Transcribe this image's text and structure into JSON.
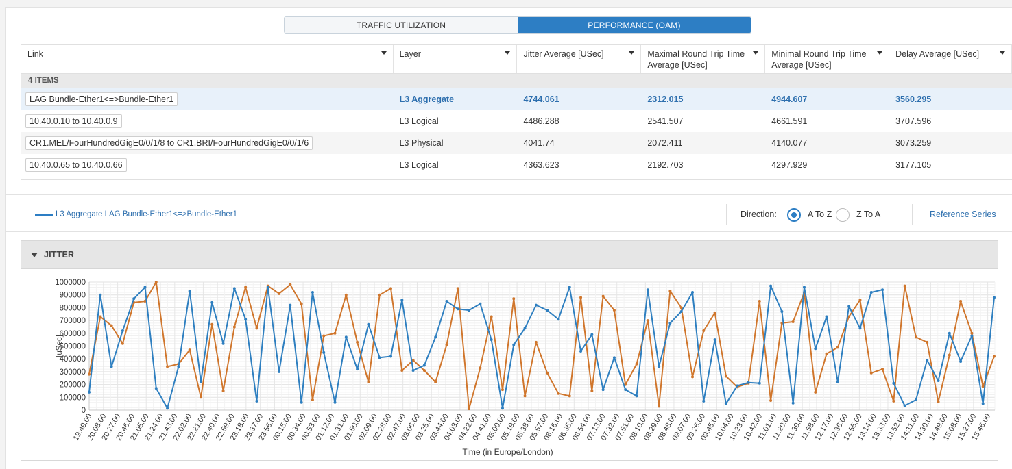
{
  "tabs": [
    {
      "label": "TRAFFIC UTILIZATION",
      "active": false
    },
    {
      "label": "PERFORMANCE (OAM)",
      "active": true
    }
  ],
  "table": {
    "columns": [
      "Link",
      "Layer",
      "Jitter Average [USec]",
      "Maximal Round Trip Time Average [USec]",
      "Minimal Round Trip Time Average [USec]",
      "Delay Average [USec]"
    ],
    "count_label": "4 ITEMS",
    "rows": [
      {
        "link": "LAG Bundle-Ether1<=>Bundle-Ether1",
        "layer": "L3 Aggregate",
        "jitter": "4744.061",
        "max_rtt": "2312.015",
        "min_rtt": "4944.607",
        "delay": "3560.295",
        "selected": true
      },
      {
        "link": "10.40.0.10 to 10.40.0.9",
        "layer": "L3 Logical",
        "jitter": "4486.288",
        "max_rtt": "2541.507",
        "min_rtt": "4661.591",
        "delay": "3707.596",
        "selected": false
      },
      {
        "link": "CR1.MEL/FourHundredGigE0/0/1/8 to CR1.BRI/FourHundredGigE0/0/1/6",
        "layer": "L3 Physical",
        "jitter": "4041.74",
        "max_rtt": "2072.411",
        "min_rtt": "4140.077",
        "delay": "3073.259",
        "selected": false
      },
      {
        "link": "10.40.0.65 to 10.40.0.66",
        "layer": "L3 Logical",
        "jitter": "4363.623",
        "max_rtt": "2192.703",
        "min_rtt": "4297.929",
        "delay": "3177.105",
        "selected": false
      }
    ]
  },
  "legend": {
    "label": "L3 Aggregate LAG Bundle-Ether1<=>Bundle-Ether1",
    "color": "#2d7ec4"
  },
  "direction": {
    "label": "Direction:",
    "options": [
      "A To Z",
      "Z To A"
    ],
    "selected": "A To Z"
  },
  "reference_series_label": "Reference Series",
  "panel": {
    "title": "JITTER"
  },
  "colors": {
    "accent": "#2d7ec4",
    "series_blue": "#2e7fc0",
    "series_orange": "#d0762c"
  },
  "chart_data": {
    "type": "line",
    "ylabel": "[uSec]",
    "xlabel": "Time (in Europe/London)",
    "ylim": [
      0,
      1000000
    ],
    "yticks": [
      0,
      100000,
      200000,
      300000,
      400000,
      500000,
      600000,
      700000,
      800000,
      900000,
      1000000
    ],
    "x_tick_labels": [
      "19:49:00",
      "20:08:00",
      "20:27:00",
      "20:46:00",
      "21:05:00",
      "21:24:00",
      "21:43:00",
      "22:02:00",
      "22:21:00",
      "22:40:00",
      "22:59:00",
      "23:18:00",
      "23:37:00",
      "23:56:00",
      "00:15:00",
      "00:34:00",
      "00:53:00",
      "01:12:00",
      "01:31:00",
      "01:50:00",
      "02:09:00",
      "02:28:00",
      "02:47:00",
      "03:06:00",
      "03:25:00",
      "03:44:00",
      "04:03:00",
      "04:22:00",
      "04:41:00",
      "05:00:00",
      "05:19:00",
      "05:38:00",
      "05:57:00",
      "06:16:00",
      "06:35:00",
      "06:54:00",
      "07:13:00",
      "07:32:00",
      "07:51:00",
      "08:10:00",
      "08:29:00",
      "08:48:00",
      "09:07:00",
      "09:26:00",
      "09:45:00",
      "10:04:00",
      "10:23:00",
      "10:42:00",
      "11:01:00",
      "11:20:00",
      "11:39:00",
      "11:58:00",
      "12:17:00",
      "12:36:00",
      "12:55:00",
      "13:14:00",
      "13:33:00",
      "13:52:00",
      "14:11:00",
      "14:30:00",
      "14:49:00",
      "15:08:00",
      "15:27:00",
      "15:46:00"
    ],
    "grid": true,
    "series": [
      {
        "color": "#2e7fc0",
        "values": [
          140000,
          900000,
          340000,
          620000,
          870000,
          960000,
          170000,
          15000,
          340000,
          930000,
          220000,
          840000,
          520000,
          950000,
          710000,
          70000,
          960000,
          300000,
          820000,
          60000,
          920000,
          450000,
          60000,
          570000,
          320000,
          670000,
          410000,
          420000,
          860000,
          310000,
          350000,
          570000,
          850000,
          790000,
          780000,
          830000,
          550000,
          15000,
          510000,
          640000,
          820000,
          780000,
          710000,
          960000,
          460000,
          590000,
          160000,
          410000,
          160000,
          110000,
          940000,
          340000,
          680000,
          770000,
          920000,
          70000,
          550000,
          50000,
          190000,
          215000,
          210000,
          970000,
          770000,
          55000,
          960000,
          480000,
          730000,
          220000,
          810000,
          640000,
          920000,
          940000,
          210000,
          35000,
          80000,
          390000,
          230000,
          600000,
          380000,
          580000,
          50000,
          880000
        ]
      },
      {
        "color": "#d0762c",
        "values": [
          280000,
          730000,
          660000,
          520000,
          840000,
          850000,
          1000000,
          340000,
          360000,
          470000,
          100000,
          670000,
          150000,
          650000,
          960000,
          640000,
          970000,
          910000,
          980000,
          830000,
          80000,
          580000,
          600000,
          900000,
          530000,
          220000,
          900000,
          950000,
          310000,
          390000,
          310000,
          220000,
          510000,
          950000,
          10000,
          330000,
          730000,
          160000,
          870000,
          110000,
          530000,
          290000,
          130000,
          110000,
          880000,
          150000,
          890000,
          780000,
          200000,
          360000,
          700000,
          30000,
          930000,
          800000,
          260000,
          620000,
          760000,
          265000,
          180000,
          210000,
          850000,
          75000,
          680000,
          690000,
          920000,
          140000,
          440000,
          490000,
          730000,
          860000,
          290000,
          320000,
          70000,
          970000,
          570000,
          530000,
          65000,
          430000,
          850000,
          600000,
          185000,
          420000
        ]
      }
    ]
  }
}
